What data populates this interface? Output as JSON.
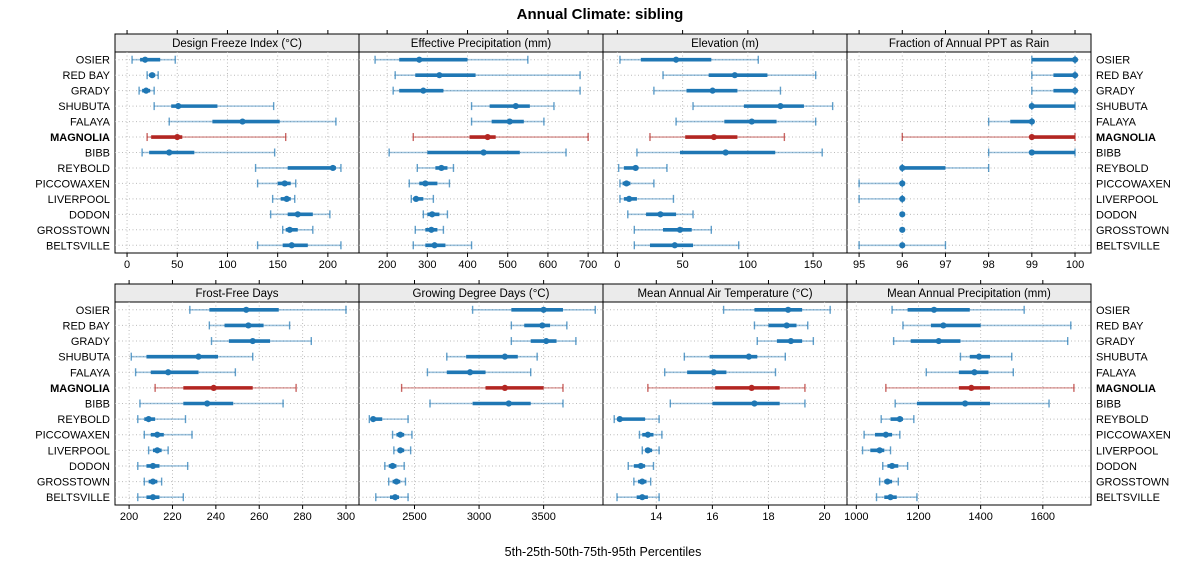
{
  "chart_data": {
    "type": "dot-whisker-percentile-trellis",
    "title": "Annual Climate: sibling",
    "xlabel": "5th-25th-50th-75th-95th Percentiles",
    "percentiles": [
      5,
      25,
      50,
      75,
      95
    ],
    "legend_position": "none",
    "grid": "dotted",
    "highlight_site": "MAGNOLIA",
    "colors": {
      "series_blue": "#1f77b4",
      "highlight_red": "#b32622",
      "header_bg": "#ebebeb",
      "panel_border": "#000000",
      "grid_line": "#bbbbbb"
    },
    "sites": [
      "OSIER",
      "RED BAY",
      "GRADY",
      "SHUBUTA",
      "FALAYA",
      "MAGNOLIA",
      "BIBB",
      "REYBOLD",
      "PICCOWAXEN",
      "LIVERPOOL",
      "DODON",
      "GROSSTOWN",
      "BELTSVILLE"
    ],
    "panels": [
      {
        "label": "Design Freeze Index (°C)",
        "row": 0,
        "col": 0,
        "xlim": [
          -12,
          231
        ],
        "ticks": [
          0,
          50,
          100,
          150,
          200
        ],
        "series": {
          "OSIER": [
            5,
            13,
            18,
            33,
            48
          ],
          "RED BAY": [
            20,
            22,
            25,
            28,
            31
          ],
          "GRADY": [
            12,
            15,
            19,
            23,
            27
          ],
          "SHUBUTA": [
            27,
            44,
            51,
            90,
            146
          ],
          "FALAYA": [
            42,
            85,
            115,
            152,
            208
          ],
          "MAGNOLIA": [
            20,
            24,
            50,
            55,
            158
          ],
          "BIBB": [
            15,
            22,
            42,
            67,
            147
          ],
          "REYBOLD": [
            128,
            160,
            205,
            208,
            213
          ],
          "PICCOWAXEN": [
            130,
            150,
            157,
            163,
            168
          ],
          "LIVERPOOL": [
            145,
            153,
            159,
            163,
            167
          ],
          "DODON": [
            143,
            160,
            170,
            185,
            202
          ],
          "GROSSTOWN": [
            155,
            158,
            162,
            170,
            185
          ],
          "BELTSVILLE": [
            130,
            155,
            164,
            180,
            213
          ]
        }
      },
      {
        "label": "Effective Precipitation (mm)",
        "row": 0,
        "col": 1,
        "xlim": [
          130,
          737
        ],
        "ticks": [
          200,
          300,
          400,
          500,
          600,
          700
        ],
        "series": {
          "OSIER": [
            170,
            230,
            280,
            400,
            550
          ],
          "RED BAY": [
            220,
            270,
            330,
            420,
            680
          ],
          "GRADY": [
            215,
            230,
            290,
            340,
            680
          ],
          "SHUBUTA": [
            410,
            455,
            520,
            555,
            615
          ],
          "FALAYA": [
            410,
            460,
            505,
            540,
            590
          ],
          "MAGNOLIA": [
            265,
            405,
            450,
            470,
            700
          ],
          "BIBB": [
            205,
            300,
            440,
            530,
            645
          ],
          "REYBOLD": [
            275,
            320,
            335,
            350,
            365
          ],
          "PICCOWAXEN": [
            255,
            280,
            295,
            325,
            355
          ],
          "LIVERPOOL": [
            260,
            265,
            272,
            290,
            315
          ],
          "DODON": [
            290,
            300,
            312,
            330,
            350
          ],
          "GROSSTOWN": [
            270,
            295,
            310,
            325,
            340
          ],
          "BELTSVILLE": [
            265,
            295,
            318,
            345,
            410
          ]
        }
      },
      {
        "label": "Elevation (m)",
        "row": 0,
        "col": 2,
        "xlim": [
          -11,
          176
        ],
        "ticks": [
          0,
          50,
          100,
          150
        ],
        "series": {
          "OSIER": [
            2,
            18,
            45,
            72,
            108
          ],
          "RED BAY": [
            35,
            70,
            90,
            115,
            152
          ],
          "GRADY": [
            28,
            53,
            73,
            92,
            125
          ],
          "SHUBUTA": [
            58,
            97,
            125,
            143,
            165
          ],
          "FALAYA": [
            45,
            82,
            103,
            122,
            152
          ],
          "MAGNOLIA": [
            25,
            52,
            74,
            92,
            128
          ],
          "BIBB": [
            15,
            48,
            83,
            121,
            157
          ],
          "REYBOLD": [
            1,
            5,
            14,
            16,
            38
          ],
          "PICCOWAXEN": [
            2,
            4,
            7,
            10,
            28
          ],
          "LIVERPOOL": [
            2,
            5,
            9,
            15,
            43
          ],
          "DODON": [
            8,
            22,
            33,
            45,
            58
          ],
          "GROSSTOWN": [
            13,
            35,
            48,
            57,
            72
          ],
          "BELTSVILLE": [
            13,
            25,
            44,
            58,
            93
          ]
        }
      },
      {
        "label": "Fraction of Annual PPT as Rain",
        "row": 0,
        "col": 3,
        "xlim": [
          94.72,
          100.37
        ],
        "ticks": [
          95,
          96,
          97,
          98,
          99,
          100
        ],
        "series": {
          "OSIER": [
            99,
            99,
            100,
            100,
            100
          ],
          "RED BAY": [
            99,
            99.5,
            100,
            100,
            100
          ],
          "GRADY": [
            99,
            99.5,
            100,
            100,
            100
          ],
          "SHUBUTA": [
            99,
            99,
            99,
            100,
            100
          ],
          "FALAYA": [
            98,
            98.5,
            99,
            99,
            99
          ],
          "MAGNOLIA": [
            96,
            99,
            99,
            100,
            100
          ],
          "BIBB": [
            98,
            99,
            99,
            100,
            100
          ],
          "REYBOLD": [
            96,
            96,
            96,
            97,
            98
          ],
          "PICCOWAXEN": [
            95,
            96,
            96,
            96,
            96
          ],
          "LIVERPOOL": [
            95,
            96,
            96,
            96,
            96
          ],
          "DODON": [
            96,
            96,
            96,
            96,
            96
          ],
          "GROSSTOWN": [
            96,
            96,
            96,
            96,
            96
          ],
          "BELTSVILLE": [
            95,
            96,
            96,
            96,
            97
          ]
        }
      },
      {
        "label": "Frost-Free Days",
        "row": 1,
        "col": 0,
        "xlim": [
          193.5,
          306
        ],
        "ticks": [
          200,
          220,
          240,
          260,
          280,
          300
        ],
        "series": {
          "OSIER": [
            228,
            237,
            254,
            269,
            300
          ],
          "RED BAY": [
            237,
            244,
            255,
            262,
            274
          ],
          "GRADY": [
            238,
            246,
            257,
            265,
            284
          ],
          "SHUBUTA": [
            201,
            208,
            232,
            241,
            257
          ],
          "FALAYA": [
            203,
            210,
            218,
            232,
            249
          ],
          "MAGNOLIA": [
            212,
            225,
            239,
            257,
            277
          ],
          "BIBB": [
            205,
            225,
            236,
            248,
            271
          ],
          "REYBOLD": [
            204,
            207,
            209,
            212,
            226
          ],
          "PICCOWAXEN": [
            207,
            210,
            213,
            216,
            229
          ],
          "LIVERPOOL": [
            209,
            211,
            213,
            215,
            218
          ],
          "DODON": [
            204,
            208,
            211,
            214,
            227
          ],
          "GROSSTOWN": [
            207,
            209,
            211,
            213,
            215
          ],
          "BELTSVILLE": [
            204,
            208,
            211,
            214,
            225
          ]
        }
      },
      {
        "label": "Growing Degree Days (°C)",
        "row": 1,
        "col": 1,
        "xlim": [
          2070,
          3960
        ],
        "ticks": [
          2500,
          3000,
          3500
        ],
        "series": {
          "OSIER": [
            2950,
            3250,
            3500,
            3650,
            3900
          ],
          "RED BAY": [
            3250,
            3350,
            3490,
            3550,
            3680
          ],
          "GRADY": [
            3250,
            3400,
            3520,
            3600,
            3750
          ],
          "SHUBUTA": [
            2750,
            2900,
            3200,
            3300,
            3450
          ],
          "FALAYA": [
            2600,
            2750,
            2930,
            3050,
            3400
          ],
          "MAGNOLIA": [
            2400,
            3050,
            3200,
            3500,
            3650
          ],
          "BIBB": [
            2620,
            2950,
            3230,
            3400,
            3650
          ],
          "REYBOLD": [
            2150,
            2160,
            2180,
            2250,
            2450
          ],
          "PICCOWAXEN": [
            2330,
            2360,
            2390,
            2420,
            2480
          ],
          "LIVERPOOL": [
            2340,
            2370,
            2390,
            2420,
            2470
          ],
          "DODON": [
            2270,
            2300,
            2330,
            2360,
            2420
          ],
          "GROSSTOWN": [
            2300,
            2330,
            2360,
            2390,
            2430
          ],
          "BELTSVILLE": [
            2200,
            2310,
            2350,
            2380,
            2450
          ]
        }
      },
      {
        "label": "Mean Annual Air Temperature (°C)",
        "row": 1,
        "col": 2,
        "xlim": [
          12.1,
          20.8
        ],
        "ticks": [
          14,
          16,
          18,
          20
        ],
        "series": {
          "OSIER": [
            16.4,
            17.5,
            18.7,
            19.2,
            20.2
          ],
          "RED BAY": [
            17.5,
            18.0,
            18.65,
            19.0,
            19.4
          ],
          "GRADY": [
            17.6,
            18.3,
            18.8,
            19.2,
            19.6
          ],
          "SHUBUTA": [
            15.0,
            15.9,
            17.3,
            17.6,
            18.6
          ],
          "FALAYA": [
            14.3,
            15.1,
            16.05,
            16.5,
            18.25
          ],
          "MAGNOLIA": [
            13.7,
            16.1,
            17.4,
            18.4,
            19.3
          ],
          "BIBB": [
            14.5,
            16.0,
            17.5,
            18.4,
            19.3
          ],
          "REYBOLD": [
            12.5,
            12.6,
            12.7,
            13.6,
            14.1
          ],
          "PICCOWAXEN": [
            13.4,
            13.5,
            13.7,
            13.9,
            14.2
          ],
          "LIVERPOOL": [
            13.5,
            13.6,
            13.7,
            13.85,
            14.1
          ],
          "DODON": [
            13.0,
            13.2,
            13.45,
            13.6,
            13.9
          ],
          "GROSSTOWN": [
            13.2,
            13.35,
            13.5,
            13.65,
            13.8
          ],
          "BELTSVILLE": [
            12.6,
            13.3,
            13.5,
            13.7,
            14.1
          ]
        }
      },
      {
        "label": "Mean Annual Precipitation (mm)",
        "row": 1,
        "col": 3,
        "xlim": [
          970,
          1755
        ],
        "ticks": [
          1000,
          1200,
          1400,
          1600
        ],
        "series": {
          "OSIER": [
            1115,
            1165,
            1250,
            1365,
            1540
          ],
          "RED BAY": [
            1150,
            1240,
            1280,
            1400,
            1690
          ],
          "GRADY": [
            1120,
            1175,
            1265,
            1335,
            1680
          ],
          "SHUBUTA": [
            1335,
            1365,
            1395,
            1430,
            1500
          ],
          "FALAYA": [
            1225,
            1330,
            1380,
            1425,
            1505
          ],
          "MAGNOLIA": [
            1095,
            1330,
            1370,
            1430,
            1700
          ],
          "BIBB": [
            1125,
            1195,
            1350,
            1430,
            1620
          ],
          "REYBOLD": [
            1080,
            1110,
            1140,
            1150,
            1185
          ],
          "PICCOWAXEN": [
            1025,
            1060,
            1095,
            1115,
            1140
          ],
          "LIVERPOOL": [
            1020,
            1045,
            1075,
            1090,
            1110
          ],
          "DODON": [
            1085,
            1100,
            1115,
            1135,
            1165
          ],
          "GROSSTOWN": [
            1075,
            1090,
            1100,
            1115,
            1135
          ],
          "BELTSVILLE": [
            1065,
            1090,
            1110,
            1130,
            1195
          ]
        }
      }
    ]
  }
}
